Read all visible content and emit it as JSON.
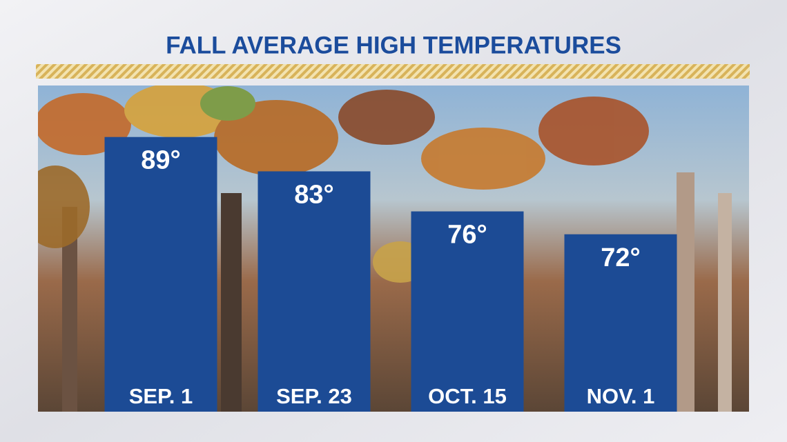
{
  "chart_data": {
    "type": "bar",
    "title": "FALL AVERAGE HIGH TEMPERATURES",
    "categories": [
      "SEP. 1",
      "SEP. 23",
      "OCT. 15",
      "NOV. 1"
    ],
    "values": [
      89,
      83,
      76,
      72
    ],
    "value_labels": [
      "89°",
      "83°",
      "76°",
      "72°"
    ],
    "color": "#1c4b95",
    "ylim": [
      41,
      98
    ]
  }
}
